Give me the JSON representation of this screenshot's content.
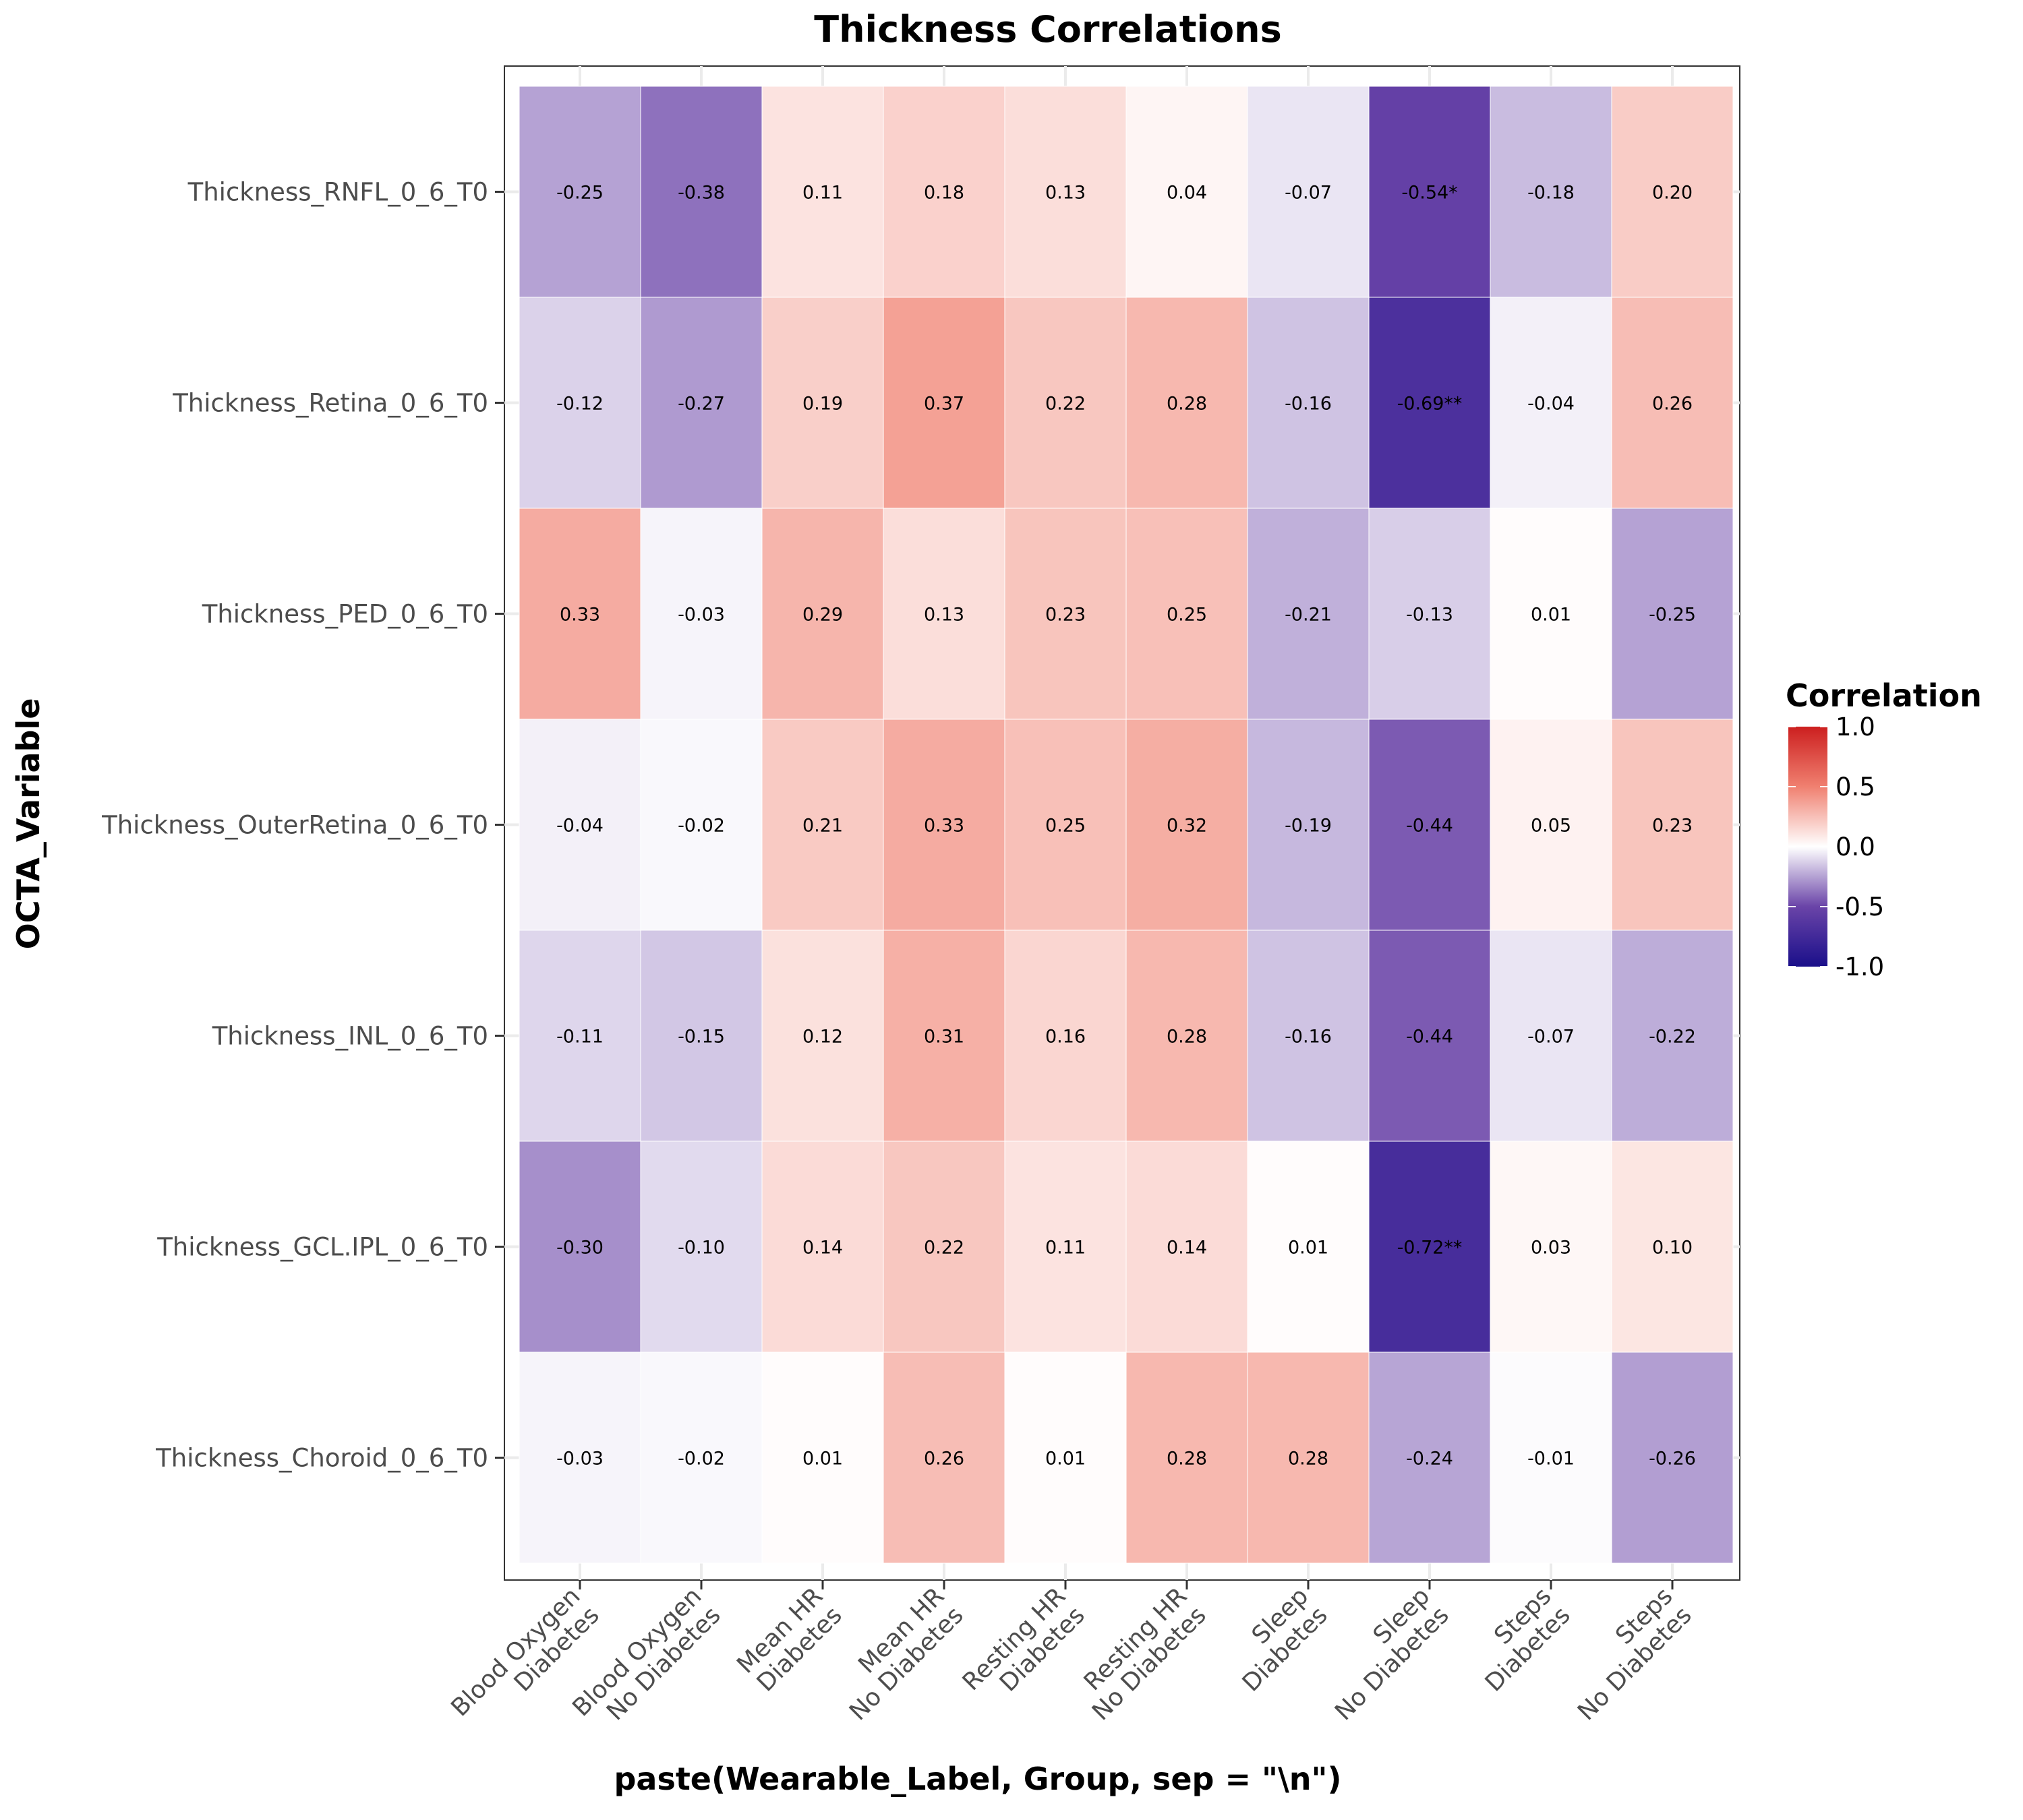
{
  "chart_data": {
    "type": "heatmap",
    "title": "Thickness Correlations",
    "xlabel": "paste(Wearable_Label, Group, sep = \"\\n\")",
    "ylabel": "OCTA_Variable",
    "x_categories": [
      [
        "Blood Oxygen",
        "Diabetes"
      ],
      [
        "Blood Oxygen",
        "No Diabetes"
      ],
      [
        "Mean HR",
        "Diabetes"
      ],
      [
        "Mean HR",
        "No Diabetes"
      ],
      [
        "Resting HR",
        "Diabetes"
      ],
      [
        "Resting HR",
        "No Diabetes"
      ],
      [
        "Sleep",
        "Diabetes"
      ],
      [
        "Sleep",
        "No Diabetes"
      ],
      [
        "Steps",
        "Diabetes"
      ],
      [
        "Steps",
        "No Diabetes"
      ]
    ],
    "y_categories": [
      "Thickness_RNFL_0_6_T0",
      "Thickness_Retina_0_6_T0",
      "Thickness_PED_0_6_T0",
      "Thickness_OuterRetina_0_6_T0",
      "Thickness_INL_0_6_T0",
      "Thickness_GCL.IPL_0_6_T0",
      "Thickness_Choroid_0_6_T0"
    ],
    "values": [
      [
        -0.25,
        -0.38,
        0.11,
        0.18,
        0.13,
        0.04,
        -0.07,
        -0.54,
        -0.18,
        0.2
      ],
      [
        -0.12,
        -0.27,
        0.19,
        0.37,
        0.22,
        0.28,
        -0.16,
        -0.69,
        -0.04,
        0.26
      ],
      [
        0.33,
        -0.03,
        0.29,
        0.13,
        0.23,
        0.25,
        -0.21,
        -0.13,
        0.01,
        -0.25
      ],
      [
        -0.04,
        -0.02,
        0.21,
        0.33,
        0.25,
        0.32,
        -0.19,
        -0.44,
        0.05,
        0.23
      ],
      [
        -0.11,
        -0.15,
        0.12,
        0.31,
        0.16,
        0.28,
        -0.16,
        -0.44,
        -0.07,
        -0.22
      ],
      [
        -0.3,
        -0.1,
        0.14,
        0.22,
        0.11,
        0.14,
        0.01,
        -0.72,
        0.03,
        0.1
      ],
      [
        -0.03,
        -0.02,
        0.01,
        0.26,
        0.01,
        0.28,
        0.28,
        -0.24,
        -0.01,
        -0.26
      ]
    ],
    "labels": [
      [
        "-0.25",
        "-0.38",
        "0.11",
        "0.18",
        "0.13",
        "0.04",
        "-0.07",
        "-0.54*",
        "-0.18",
        "0.20"
      ],
      [
        "-0.12",
        "-0.27",
        "0.19",
        "0.37",
        "0.22",
        "0.28",
        "-0.16",
        "-0.69**",
        "-0.04",
        "0.26"
      ],
      [
        "0.33",
        "-0.03",
        "0.29",
        "0.13",
        "0.23",
        "0.25",
        "-0.21",
        "-0.13",
        "0.01",
        "-0.25"
      ],
      [
        "-0.04",
        "-0.02",
        "0.21",
        "0.33",
        "0.25",
        "0.32",
        "-0.19",
        "-0.44",
        "0.05",
        "0.23"
      ],
      [
        "-0.11",
        "-0.15",
        "0.12",
        "0.31",
        "0.16",
        "0.28",
        "-0.16",
        "-0.44",
        "-0.07",
        "-0.22"
      ],
      [
        "-0.30",
        "-0.10",
        "0.14",
        "0.22",
        "0.11",
        "0.14",
        "0.01",
        "-0.72**",
        "0.03",
        "0.10"
      ],
      [
        "-0.03",
        "-0.02",
        "0.01",
        "0.26",
        "0.01",
        "0.28",
        "0.28",
        "-0.24",
        "-0.01",
        "-0.26"
      ]
    ],
    "legend": {
      "title": "Correlation",
      "ticks": [
        1.0,
        0.5,
        0.0,
        -0.5,
        -1.0
      ],
      "tick_labels": [
        "1.0",
        "0.5",
        "0.0",
        "-0.5",
        "-1.0"
      ],
      "placement": "right"
    },
    "color_scale": {
      "low": "#1a0f8a",
      "low_mid": "#6a44a8",
      "mid": "#ffffff",
      "high_mid": "#f08070",
      "high": "#cc1f1f",
      "range": [
        -1,
        1
      ]
    },
    "grid": true
  }
}
